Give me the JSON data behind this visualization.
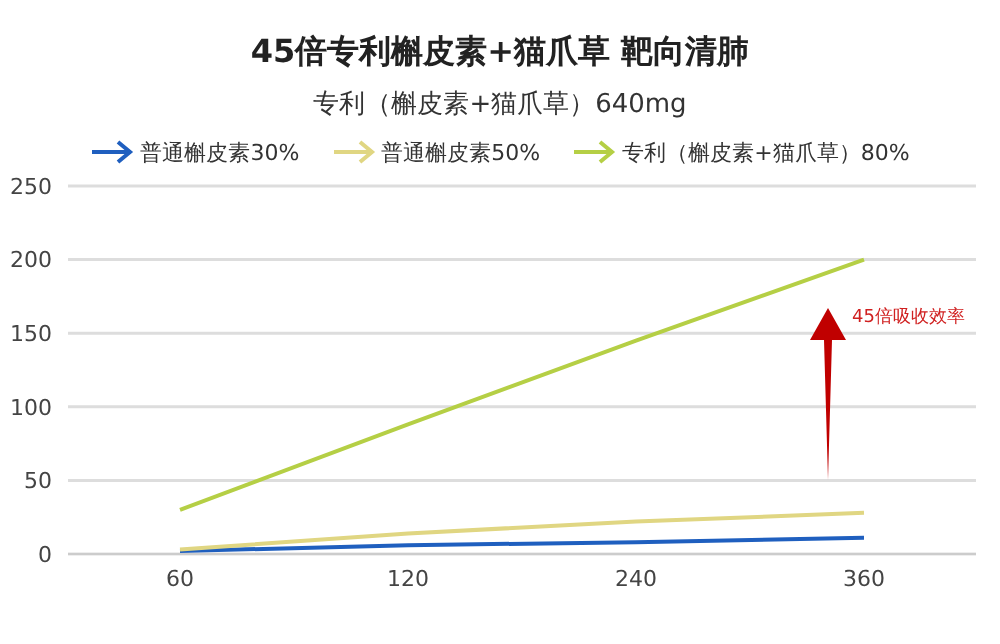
{
  "chart_data": {
    "type": "line",
    "title": "45倍专利槲皮素+猫爪草 靶向清肺",
    "subtitle": "专利（槲皮素+猫爪草）640mg",
    "categories": [
      "60",
      "120",
      "240",
      "360"
    ],
    "series": [
      {
        "name": "普通槲皮素30%",
        "color": "#1f5fbf",
        "values": [
          2,
          6,
          8,
          11
        ]
      },
      {
        "name": "普通槲皮素50%",
        "color": "#e0d682",
        "values": [
          3,
          14,
          22,
          28
        ]
      },
      {
        "name": "专利（槲皮素+猫爪草）80%",
        "color": "#b5cf45",
        "values": [
          30,
          88,
          145,
          200
        ]
      }
    ],
    "ylim": [
      0,
      250
    ],
    "yticks": [
      0,
      50,
      100,
      150,
      200,
      250
    ],
    "grid": "y",
    "legend": "top",
    "annotations": [
      "45倍吸收效率"
    ]
  }
}
